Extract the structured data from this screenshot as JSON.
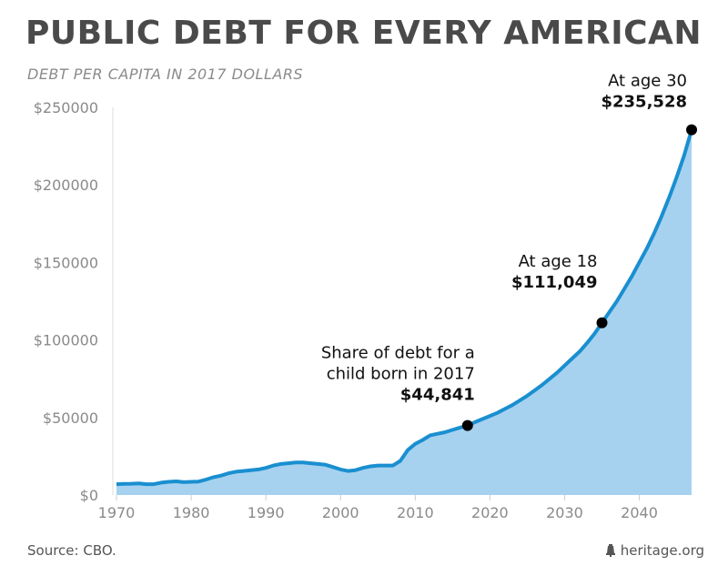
{
  "title": "PUBLIC DEBT FOR EVERY AMERICAN",
  "subtitle": "DEBT PER CAPITA IN 2017 DOLLARS",
  "source": "Source: CBO.",
  "brand": "heritage.org",
  "colors": {
    "line": "#1a8fd0",
    "area": "#a6d2f0",
    "marker": "#000000",
    "axis_text": "#8a8a8a"
  },
  "chart_data": {
    "type": "area",
    "xlim": [
      1970,
      2047
    ],
    "ylim": [
      0,
      250000
    ],
    "x_ticks": [
      1970,
      1980,
      1990,
      2000,
      2010,
      2020,
      2030,
      2040
    ],
    "y_ticks": [
      0,
      50000,
      100000,
      150000,
      200000,
      250000
    ],
    "y_tick_labels": [
      "$0",
      "$50000",
      "$100000",
      "$150000",
      "$200000",
      "$250000"
    ],
    "series": [
      {
        "x": [
          1970,
          1971,
          1972,
          1973,
          1974,
          1975,
          1976,
          1977,
          1978,
          1979,
          1980,
          1981,
          1982,
          1983,
          1984,
          1985,
          1986,
          1987,
          1988,
          1989,
          1990,
          1991,
          1992,
          1993,
          1994,
          1995,
          1996,
          1997,
          1998,
          1999,
          2000,
          2001,
          2002,
          2003,
          2004,
          2005,
          2006,
          2007,
          2008,
          2009,
          2010,
          2011,
          2012,
          2013,
          2014,
          2015,
          2016,
          2017,
          2018,
          2019,
          2020,
          2021,
          2022,
          2023,
          2024,
          2025,
          2026,
          2027,
          2028,
          2029,
          2030,
          2031,
          2032,
          2033,
          2034,
          2035,
          2036,
          2037,
          2038,
          2039,
          2040,
          2041,
          2042,
          2043,
          2044,
          2045,
          2046,
          2047
        ],
        "values": [
          7000,
          7200,
          7300,
          7500,
          7000,
          7000,
          8000,
          8500,
          8800,
          8300,
          8500,
          8700,
          10000,
          11500,
          12500,
          14000,
          15000,
          15500,
          16000,
          16500,
          17500,
          19000,
          20000,
          20500,
          21000,
          21000,
          20500,
          20000,
          19500,
          18000,
          16500,
          15500,
          16000,
          17500,
          18500,
          19000,
          19000,
          19000,
          22000,
          29000,
          33000,
          35500,
          38500,
          39500,
          40500,
          42000,
          43500,
          44841,
          47000,
          49000,
          51000,
          53000,
          55500,
          58000,
          61000,
          64000,
          67500,
          71000,
          75000,
          79000,
          83500,
          88000,
          92500,
          98000,
          104000,
          111049,
          118000,
          125000,
          133000,
          141000,
          150000,
          159000,
          169000,
          180000,
          192000,
          205000,
          219000,
          235528
        ]
      }
    ],
    "annotations": [
      {
        "x": 2017,
        "y": 44841,
        "lines": [
          "Share of debt for a",
          "child born in 2017"
        ],
        "value": "$44,841"
      },
      {
        "x": 2035,
        "y": 111049,
        "lines": [
          "At age 18"
        ],
        "value": "$111,049"
      },
      {
        "x": 2047,
        "y": 235528,
        "lines": [
          "At age 30"
        ],
        "value": "$235,528"
      }
    ]
  }
}
